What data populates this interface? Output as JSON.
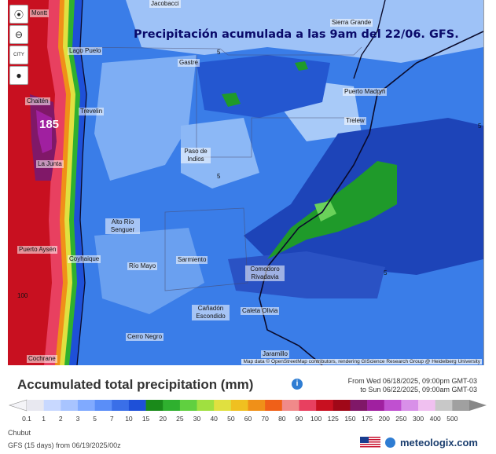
{
  "map": {
    "title": "Precipitación acumulada a las 9am del 22/06. GFS.",
    "peak_value": "185",
    "attribution": "Map data © OpenStreetMap contributors, rendering GIScience Research Group @ Heidelberg University",
    "places": [
      {
        "name": "Jacobacci"
      },
      {
        "name": "Sierra Grande"
      },
      {
        "name": "Lago Puelo"
      },
      {
        "name": "Gastre"
      },
      {
        "name": "Puerto Madryn"
      },
      {
        "name": "Chaitén"
      },
      {
        "name": "Trevelin"
      },
      {
        "name": "Trelew"
      },
      {
        "name": "Paso de Indios"
      },
      {
        "name": "La Junta"
      },
      {
        "name": "Alto Río Senguer"
      },
      {
        "name": "Puerto Aysén"
      },
      {
        "name": "Coyhaique"
      },
      {
        "name": "Sarmiento"
      },
      {
        "name": "Río Mayo"
      },
      {
        "name": "Comodoro Rivadavia"
      },
      {
        "name": "Cañadón Escondido"
      },
      {
        "name": "Caleta Olivia"
      },
      {
        "name": "Cerro Negro"
      },
      {
        "name": "Jaramillo"
      },
      {
        "name": "Cochrane"
      },
      {
        "name": "Montt"
      }
    ],
    "contour_labels": [
      "5",
      "5",
      "5",
      "5",
      "100"
    ],
    "controls": {
      "locate": "⦿",
      "zoom": "⊖",
      "city": "CITY",
      "dot": "●"
    }
  },
  "legend": {
    "title": "Accumulated total precipitation (mm)",
    "period_from": "From Wed 06/18/2025, 09:00pm GMT-03",
    "period_to": "to Sun 06/22/2025, 09:00am GMT-03",
    "ticks": [
      "0.1",
      "1",
      "2",
      "3",
      "5",
      "7",
      "10",
      "15",
      "20",
      "25",
      "30",
      "40",
      "50",
      "60",
      "70",
      "80",
      "90",
      "100",
      "125",
      "150",
      "175",
      "200",
      "250",
      "300",
      "400",
      "500"
    ],
    "colors": [
      "#e8e8f0",
      "#c8d8ff",
      "#a8c4ff",
      "#80aaff",
      "#5a8ef8",
      "#3a6fe8",
      "#1e50d8",
      "#1a8a1a",
      "#2fb02f",
      "#60d040",
      "#a0e040",
      "#e0e040",
      "#f0c020",
      "#f09018",
      "#f06018",
      "#f08a8a",
      "#e84060",
      "#c81020",
      "#a00818",
      "#801868",
      "#a020a0",
      "#c050d0",
      "#d890e8",
      "#f0c0f0",
      "#c8c8c8",
      "#a0a0a0"
    ],
    "region": "Chubut",
    "model": "GFS (15 days) from 06/19/2025/00z",
    "brand": "meteologix.com"
  }
}
